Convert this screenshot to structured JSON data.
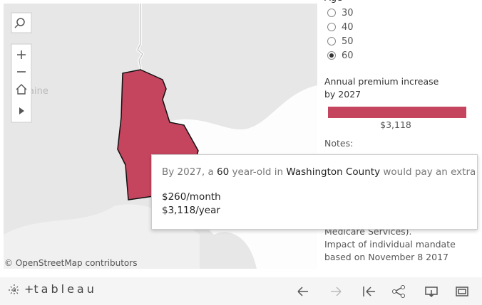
{
  "map": {
    "label": "aine",
    "attribution": "© OpenStreetMap contributors",
    "region_color": "#c5455f"
  },
  "age_filter": {
    "title": "Age",
    "options": [
      "30",
      "40",
      "50",
      "60"
    ],
    "selected": "60"
  },
  "legend": {
    "title_lines": [
      "Annual premium increase",
      "by 2027"
    ],
    "value_label": "$3,118",
    "color": "#c5455f"
  },
  "notes": {
    "title": "Notes:",
    "lines": [
      "Medicare Services).",
      "Impact of individual mandate",
      "based on November 8 2017"
    ]
  },
  "tooltip": {
    "line1": [
      {
        "text": "By 2027, a ",
        "bold": false
      },
      {
        "text": "60",
        "bold": true
      },
      {
        "text": " year-old in ",
        "bold": false
      },
      {
        "text": "Washington County",
        "bold": true
      },
      {
        "text": " would pay an extra",
        "bold": false
      }
    ],
    "monthly": "$260/month",
    "yearly": "$3,118/year"
  },
  "toolbar": {
    "logo": "tableau"
  }
}
